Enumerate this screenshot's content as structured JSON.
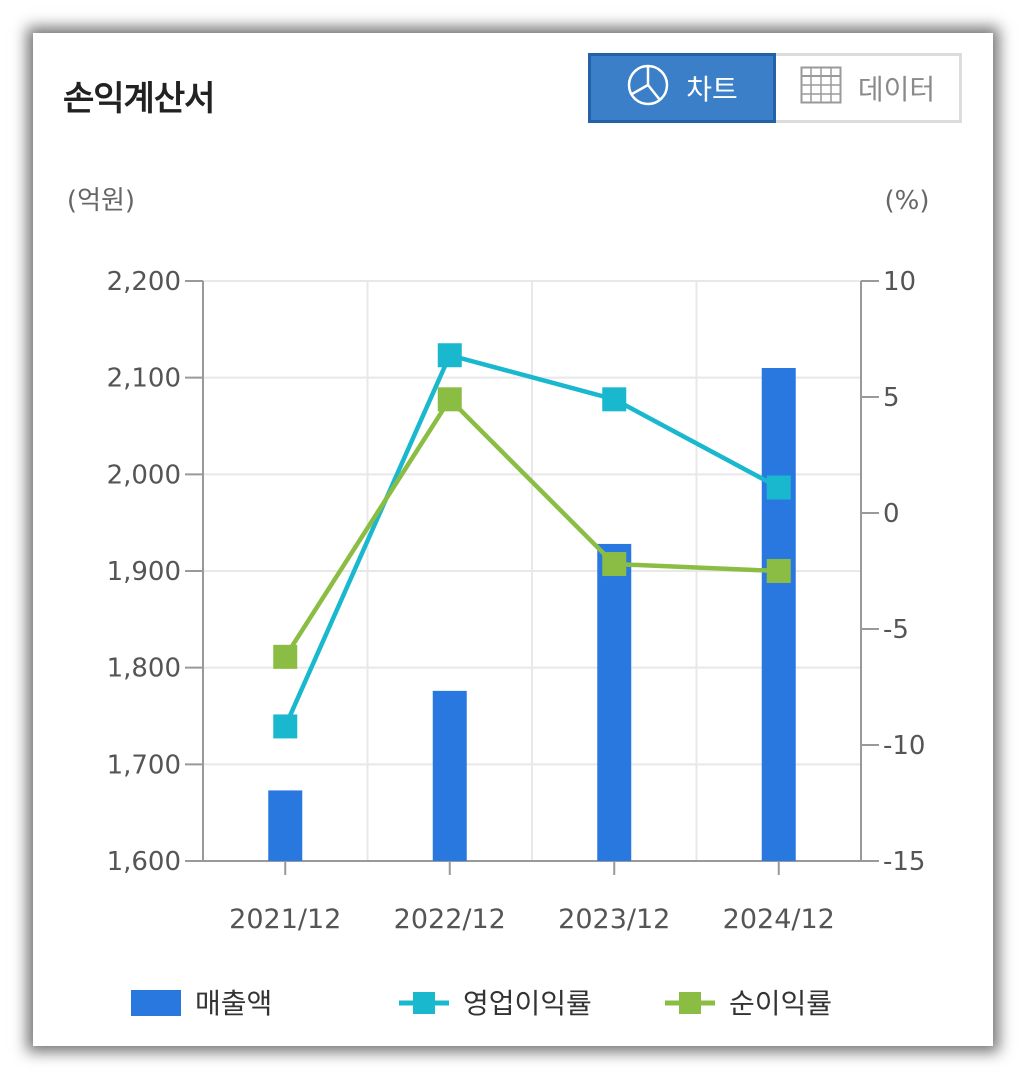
{
  "header": {
    "title": "손익계산서",
    "chart_tab_label": "차트",
    "data_tab_label": "데이터"
  },
  "icons": {
    "chart_tab": "pie-chart-icon",
    "data_tab": "table-grid-icon"
  },
  "colors": {
    "bar": "#2878e0",
    "operating": "#1ab8cf",
    "net": "#8bbd44",
    "active_tab": "#3a7fc8"
  },
  "chart_data": {
    "type": "bar",
    "categories": [
      "2021/12",
      "2022/12",
      "2023/12",
      "2024/12"
    ],
    "left_axis": {
      "unit_label": "(억원)",
      "ylim": [
        1600,
        2200
      ],
      "ticks": [
        1600,
        1700,
        1800,
        1900,
        2000,
        2100,
        2200
      ],
      "tick_labels": [
        "1,600",
        "1,700",
        "1,800",
        "1,900",
        "2,000",
        "2,100",
        "2,200"
      ]
    },
    "right_axis": {
      "unit_label": "(%)",
      "ylim": [
        -15,
        10
      ],
      "ticks": [
        -15,
        -10,
        -5,
        0,
        5,
        10
      ],
      "tick_labels": [
        "-15",
        "-10",
        "-5",
        "0",
        "5",
        "10"
      ]
    },
    "series": [
      {
        "name": "매출액",
        "type": "bar",
        "axis": "left",
        "values": [
          1673,
          1776,
          1928,
          2110
        ]
      },
      {
        "name": "영업이익률",
        "type": "line",
        "axis": "right",
        "values": [
          -9.2,
          6.8,
          4.9,
          1.1
        ]
      },
      {
        "name": "순이익률",
        "type": "line",
        "axis": "right",
        "values": [
          -6.2,
          4.9,
          -2.2,
          -2.5
        ]
      }
    ],
    "grid": true,
    "legend_position": "bottom"
  }
}
